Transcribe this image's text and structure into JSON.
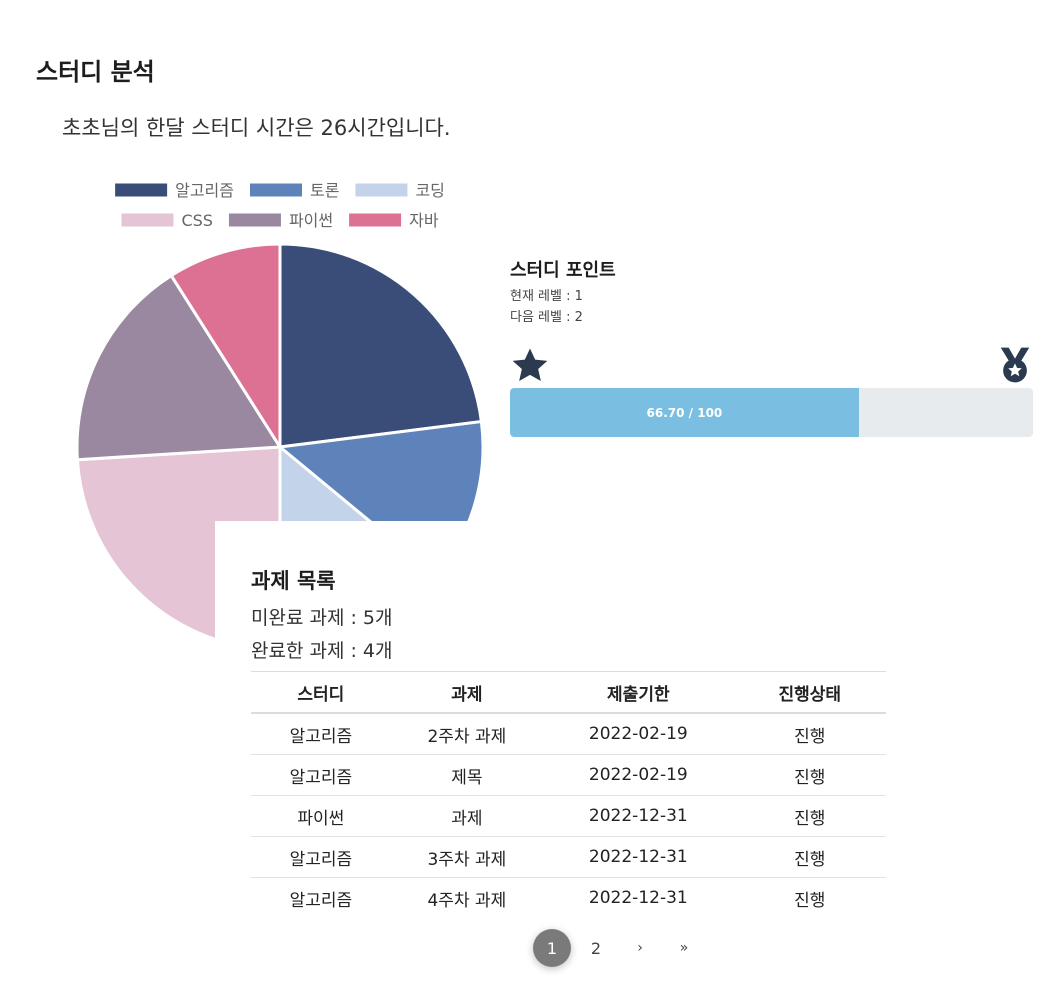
{
  "page": {
    "title": "스터디 분석",
    "summary": "초초님의 한달 스터디 시간은 26시간입니다."
  },
  "chart_data": {
    "type": "pie",
    "categories": [
      "알고리즘",
      "토론",
      "코딩",
      "CSS",
      "파이썬",
      "자바"
    ],
    "values": [
      23,
      13,
      14,
      24,
      17,
      9
    ],
    "colors": [
      "#3a4d78",
      "#5e82ba",
      "#c2d3ea",
      "#e5c4d6",
      "#99889f",
      "#dd7193"
    ],
    "title": "",
    "legend_position": "top"
  },
  "points": {
    "title": "스터디 포인트",
    "current_level": "현재 레벨 : 1",
    "next_level": "다음 레벨 : 2",
    "progress_label": "66.70 / 100",
    "progress_value": 66.7,
    "progress_max": 100,
    "star_icon": "star-icon",
    "medal_icon": "medal-icon",
    "icon_color": "#2b3a4f",
    "bar_color": "#7abfe1"
  },
  "tasks": {
    "title": "과제 목록",
    "incomplete": "미완료 과제 : 5개",
    "complete": "완료한 과제 : 4개",
    "headers": [
      "스터디",
      "과제",
      "제출기한",
      "진행상태"
    ],
    "rows": [
      [
        "알고리즘",
        "2주차 과제",
        "2022-02-19",
        "진행"
      ],
      [
        "알고리즘",
        "제목",
        "2022-02-19",
        "진행"
      ],
      [
        "파이썬",
        "과제",
        "2022-12-31",
        "진행"
      ],
      [
        "알고리즘",
        "3주차 과제",
        "2022-12-31",
        "진행"
      ],
      [
        "알고리즘",
        "4주차 과제",
        "2022-12-31",
        "진행"
      ]
    ],
    "pagination": {
      "pages": [
        "1",
        "2"
      ],
      "current": "1",
      "next": "›",
      "last": "»"
    }
  }
}
